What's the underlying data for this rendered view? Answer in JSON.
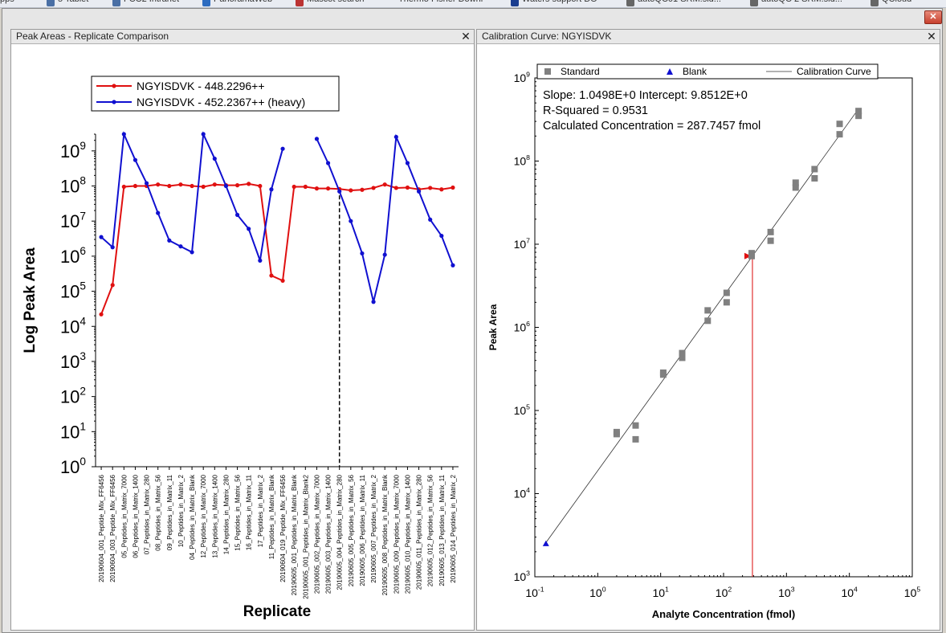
{
  "window": {
    "close_glyph": "✕"
  },
  "bookmarks": [
    {
      "label": "pps",
      "x": 0,
      "color": ""
    },
    {
      "label": "5 Tablet",
      "x": 58,
      "color": "#4a6fa5"
    },
    {
      "label": "FCC2 Intranet",
      "x": 140,
      "color": "#4a6fa5"
    },
    {
      "label": "PanoramaWeb",
      "x": 252,
      "color": "#2d6cc0"
    },
    {
      "label": "Mascot search",
      "x": 368,
      "color": "#b33"
    },
    {
      "label": "Thermo Fisher Downl",
      "x": 496,
      "color": ""
    },
    {
      "label": "Waters support DO",
      "x": 636,
      "color": "#1a3d8f"
    },
    {
      "label": "autoQC01 SRM.sld...",
      "x": 780,
      "color": "#666"
    },
    {
      "label": "autoQC 2 SRM.sld...",
      "x": 934,
      "color": "#666"
    },
    {
      "label": "QCloud",
      "x": 1084,
      "color": "#666"
    }
  ],
  "left_panel": {
    "title": "Peak Areas - Replicate Comparison",
    "close_glyph": "✕"
  },
  "right_panel": {
    "title": "Calibration Curve: NGYISDVK",
    "close_glyph": "✕"
  },
  "chart_data": [
    {
      "type": "line",
      "xlabel": "Replicate",
      "ylabel": "Log Peak Area",
      "y_scale": "log",
      "ylim": [
        1,
        3000000000
      ],
      "yticks": [
        {
          "base": "10",
          "exp": "0",
          "value": 1
        },
        {
          "base": "10",
          "exp": "1",
          "value": 10
        },
        {
          "base": "10",
          "exp": "2",
          "value": 100
        },
        {
          "base": "10",
          "exp": "3",
          "value": 1000
        },
        {
          "base": "10",
          "exp": "4",
          "value": 10000
        },
        {
          "base": "10",
          "exp": "5",
          "value": 100000
        },
        {
          "base": "10",
          "exp": "6",
          "value": 1000000
        },
        {
          "base": "10",
          "exp": "7",
          "value": 10000000
        },
        {
          "base": "10",
          "exp": "8",
          "value": 100000000
        },
        {
          "base": "10",
          "exp": "9",
          "value": 1000000000
        }
      ],
      "categories": [
        "20190604_001_Peptide_Mix_FF6456",
        "20190604_003_Peptide_Mix_FF6456",
        "05_Peptides_in_Matrix_7000",
        "06_Peptides_in_Matrix_1400",
        "07_Peptides_in_Matrix_280",
        "08_Peptides_in_Matrix_56",
        "09_Peptides_in_Matrix_11",
        "10_Peptides_in_Matrix_2",
        "04_Peptides_in_Matrix_Blank",
        "12_Peptides_in_Matrix_7000",
        "13_Peptides_in_Matrix_1400",
        "14_Peptides_in_Matrix_280",
        "15_Peptides_in_Matrix_56",
        "16_Peptides_in_Matrix_11",
        "17_Peptides_in_Matrix_2",
        "11_Peptides_in_Matrix_Blank",
        "20190604_019_Peptide_Mix_FF6456",
        "20190605_001_Peptides_in_Matrix_Blank",
        "20190605_001_Peptides_in_Matrix_Blank2",
        "20190605_002_Peptides_in_Matrix_7000",
        "20190605_003_Peptides_in_Matrix_1400",
        "20190605_004_Peptides_in_Matrix_280",
        "20190605_005_Peptides_in_Matrix_56",
        "20190605_006_Peptides_in_Matrix_11",
        "20190605_007_Peptides_in_Matrix_2",
        "20190605_008_Peptides_in_Matrix_Blank",
        "20190605_009_Peptides_in_Matrix_7000",
        "20190605_010_Peptides_in_Matrix_1400",
        "20190605_011_Peptides_in_Matrix_280",
        "20190605_012_Peptides_in_Matrix_56",
        "20190605_013_Peptides_in_Matrix_11",
        "20190605_014_Peptides_in_Matrix_2"
      ],
      "selected_index": 21,
      "legend_position": "top-left",
      "series": [
        {
          "name": "NGYISDVK - 448.2296++",
          "color": "#e01010",
          "values": [
            22000,
            150000,
            95000000,
            100000000,
            100000000,
            110000000,
            100000000,
            110000000,
            100000000,
            95000000,
            110000000,
            105000000,
            105000000,
            115000000,
            100000000,
            280000,
            200000,
            95000000,
            95000000,
            85000000,
            85000000,
            82000000,
            75000000,
            78000000,
            88000000,
            110000000,
            88000000,
            90000000,
            80000000,
            88000000,
            80000000,
            90000000
          ]
        },
        {
          "name": "NGYISDVK - 452.2367++ (heavy)",
          "color": "#1010d0",
          "values": [
            3500000,
            1800000,
            3000000000,
            550000000,
            120000000,
            17000000,
            2800000,
            1900000,
            1300000,
            3000000000,
            600000000,
            100000000,
            15000000,
            6000000,
            750000,
            80000000,
            1150000000,
            null,
            null,
            2200000000,
            450000000,
            70000000,
            10000000,
            1200000,
            50000,
            1100000,
            2500000000,
            450000000,
            70000000,
            11000000,
            3800000,
            550000
          ]
        }
      ]
    },
    {
      "type": "scatter",
      "title": "",
      "xlabel": "Analyte Concentration (fmol)",
      "ylabel": "Peak Area",
      "x_scale": "log",
      "y_scale": "log",
      "xlim": [
        0.1,
        100000
      ],
      "ylim": [
        1000,
        1000000000
      ],
      "xticks": [
        {
          "base": "10",
          "exp": "-1",
          "value": 0.1
        },
        {
          "base": "10",
          "exp": "0",
          "value": 1
        },
        {
          "base": "10",
          "exp": "1",
          "value": 10
        },
        {
          "base": "10",
          "exp": "2",
          "value": 100
        },
        {
          "base": "10",
          "exp": "3",
          "value": 1000
        },
        {
          "base": "10",
          "exp": "4",
          "value": 10000
        },
        {
          "base": "10",
          "exp": "5",
          "value": 100000
        }
      ],
      "yticks": [
        {
          "base": "10",
          "exp": "3",
          "value": 1000
        },
        {
          "base": "10",
          "exp": "4",
          "value": 10000
        },
        {
          "base": "10",
          "exp": "5",
          "value": 100000
        },
        {
          "base": "10",
          "exp": "6",
          "value": 1000000
        },
        {
          "base": "10",
          "exp": "7",
          "value": 10000000
        },
        {
          "base": "10",
          "exp": "8",
          "value": 100000000
        },
        {
          "base": "10",
          "exp": "9",
          "value": 1000000000
        }
      ],
      "legend_position": "top",
      "legend": [
        {
          "label": "Standard",
          "marker": "square",
          "color": "#808080"
        },
        {
          "label": "Blank",
          "marker": "triangle",
          "color": "#1010d0"
        },
        {
          "label": "Calibration Curve",
          "marker": "line",
          "color": "#303030"
        }
      ],
      "annotations": [
        "Slope: 1.0498E+0 Intercept: 9.8512E+0",
        "R-Squared = 0.9531",
        "Calculated Concentration = 287.7457 fmol"
      ],
      "slope": 1.0498,
      "intercept": 9.8512,
      "calculated_concentration": 287.7457,
      "calculated_peak_area": 7200000,
      "line_range": [
        0.15,
        14000
      ],
      "standards": [
        {
          "x": 2,
          "y": 52000
        },
        {
          "x": 2,
          "y": 55000
        },
        {
          "x": 4,
          "y": 45000
        },
        {
          "x": 4,
          "y": 66000
        },
        {
          "x": 11,
          "y": 270000
        },
        {
          "x": 11,
          "y": 285000
        },
        {
          "x": 22,
          "y": 430000
        },
        {
          "x": 22,
          "y": 490000
        },
        {
          "x": 56,
          "y": 1200000
        },
        {
          "x": 56,
          "y": 1600000
        },
        {
          "x": 112,
          "y": 2000000
        },
        {
          "x": 112,
          "y": 2600000
        },
        {
          "x": 280,
          "y": 7200000
        },
        {
          "x": 280,
          "y": 7800000
        },
        {
          "x": 560,
          "y": 11000000
        },
        {
          "x": 560,
          "y": 14000000
        },
        {
          "x": 1400,
          "y": 48000000
        },
        {
          "x": 1400,
          "y": 55000000
        },
        {
          "x": 2800,
          "y": 62000000
        },
        {
          "x": 2800,
          "y": 80000000
        },
        {
          "x": 7000,
          "y": 210000000
        },
        {
          "x": 7000,
          "y": 280000000
        },
        {
          "x": 14000,
          "y": 350000000
        },
        {
          "x": 14000,
          "y": 400000000
        }
      ],
      "blanks": [
        {
          "x": 0.15,
          "y": 2500
        }
      ]
    }
  ]
}
